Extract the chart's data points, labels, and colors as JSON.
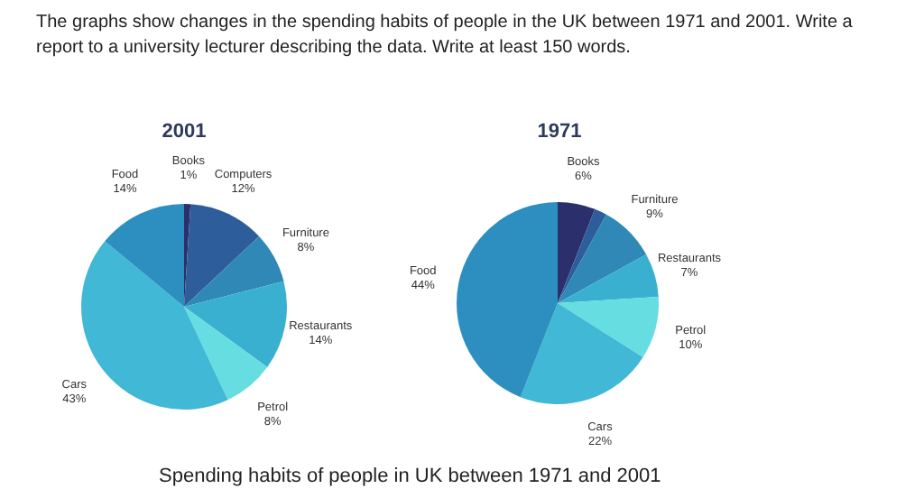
{
  "chart_data": [
    {
      "type": "pie",
      "title": "2001",
      "annotations": [
        "The graphs show changes in the spending habits of people in the UK between 1971 and 2001. Write a report to a university lecturer describing the data. Write at least 150 words."
      ],
      "categories": [
        "Books",
        "Computers",
        "Furniture",
        "Restaurants",
        "Petrol",
        "Cars",
        "Food"
      ],
      "values": [
        1,
        12,
        8,
        14,
        8,
        43,
        14
      ],
      "value_labels": [
        "1%",
        "12%",
        "8%",
        "14%",
        "8%",
        "43%",
        "14%"
      ],
      "colors": [
        "#2b2f6b",
        "#2d5d9a",
        "#2f88b5",
        "#3ab0d0",
        "#66dde0",
        "#40b8d6",
        "#2c8fbf"
      ]
    },
    {
      "type": "pie",
      "title": "1971",
      "annotations": [
        "Spending habits of people in UK between 1971 and 2001"
      ],
      "categories": [
        "Books",
        null,
        "Furniture",
        "Restaurants",
        "Petrol",
        "Cars",
        "Food"
      ],
      "values": [
        6,
        2,
        9,
        7,
        10,
        22,
        44
      ],
      "value_labels": [
        "6%",
        null,
        "9%",
        "7%",
        "10%",
        "22%",
        "44%"
      ],
      "colors": [
        "#2b2f6b",
        "#2d5d9a",
        "#2f88b5",
        "#3ab0d0",
        "#66dde0",
        "#40b8d6",
        "#2c8fbf"
      ]
    }
  ]
}
